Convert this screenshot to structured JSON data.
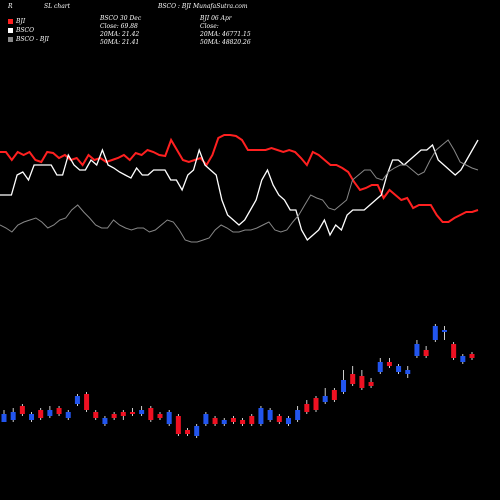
{
  "header": {
    "left_letter": "R",
    "chart_label": "SL chart",
    "center_title": "BSCO : BJI MunafaSutra.com",
    "col1_title": "BSCO 30  Dec",
    "col1_close": "Close: 69.88",
    "col1_ma20": "20MA: 21.42",
    "col1_ma50": "50MA: 21.41",
    "col2_title": "BJI 06  Apr",
    "col2_close": "Close:",
    "col2_ma20": "20MA: 46771.15",
    "col2_ma50": "50MA: 48820.26"
  },
  "legend": {
    "items": [
      {
        "label": "BJI",
        "color": "#ff2020"
      },
      {
        "label": "BSCO",
        "color": "#ffffff"
      },
      {
        "label": "BSCO - BJI",
        "color": "#888888"
      }
    ]
  },
  "chart_data": [
    {
      "type": "line",
      "series": [
        {
          "name": "BJI",
          "color": "#ff2020",
          "values": [
            152,
            152,
            160,
            152,
            155,
            152,
            160,
            162,
            152,
            153,
            158,
            155,
            160,
            158,
            165,
            155,
            160,
            158,
            162,
            160,
            158,
            155,
            160,
            153,
            155,
            150,
            152,
            155,
            156,
            140,
            150,
            160,
            162,
            160,
            158,
            165,
            155,
            138,
            135,
            135,
            136,
            140,
            150,
            150,
            150,
            150,
            148,
            150,
            152,
            150,
            152,
            158,
            165,
            152,
            155,
            160,
            165,
            165,
            168,
            172,
            182,
            190,
            188,
            185,
            185,
            198,
            190,
            195,
            200,
            198,
            208,
            205,
            205,
            205,
            215,
            222,
            222,
            218,
            215,
            212,
            212,
            210
          ]
        },
        {
          "name": "BSCO",
          "color": "#ffffff",
          "values": [
            195,
            195,
            195,
            175,
            172,
            180,
            165,
            165,
            165,
            165,
            175,
            175,
            155,
            165,
            170,
            170,
            160,
            165,
            150,
            165,
            168,
            172,
            175,
            178,
            168,
            175,
            175,
            170,
            170,
            170,
            180,
            180,
            190,
            175,
            170,
            150,
            165,
            170,
            175,
            200,
            215,
            220,
            225,
            220,
            210,
            200,
            180,
            170,
            185,
            195,
            200,
            210,
            210,
            230,
            240,
            235,
            230,
            220,
            235,
            225,
            230,
            215,
            210,
            210,
            210,
            205,
            200,
            195,
            175,
            160,
            160,
            165,
            160,
            155,
            150,
            150,
            145,
            160,
            165,
            170,
            175,
            170,
            160,
            150,
            140
          ]
        },
        {
          "name": "BSCO - BJI",
          "color": "#888888",
          "values": [
            225,
            228,
            232,
            225,
            222,
            220,
            218,
            222,
            228,
            225,
            220,
            218,
            210,
            205,
            212,
            218,
            225,
            228,
            228,
            220,
            225,
            228,
            230,
            228,
            228,
            232,
            230,
            225,
            220,
            222,
            230,
            240,
            242,
            242,
            240,
            238,
            230,
            225,
            228,
            232,
            232,
            230,
            230,
            228,
            225,
            222,
            230,
            232,
            230,
            222,
            215,
            205,
            195,
            198,
            200,
            208,
            210,
            205,
            200,
            180,
            175,
            170,
            170,
            178,
            180,
            172,
            168,
            165,
            165,
            170,
            175,
            172,
            160,
            150,
            145,
            140,
            150,
            162,
            165,
            168,
            170
          ]
        }
      ]
    },
    {
      "type": "candlestick",
      "series": [
        {
          "name": "BSCO",
          "values": [
            {
              "o": 414,
              "c": 422,
              "h": 410,
              "l": 422,
              "d": "up"
            },
            {
              "o": 412,
              "c": 420,
              "h": 408,
              "l": 422,
              "d": "up"
            },
            {
              "o": 406,
              "c": 414,
              "h": 404,
              "l": 416,
              "d": "down"
            },
            {
              "o": 414,
              "c": 420,
              "h": 412,
              "l": 422,
              "d": "up"
            },
            {
              "o": 410,
              "c": 418,
              "h": 408,
              "l": 420,
              "d": "down"
            },
            {
              "o": 410,
              "c": 416,
              "h": 406,
              "l": 418,
              "d": "up"
            },
            {
              "o": 408,
              "c": 414,
              "h": 406,
              "l": 416,
              "d": "down"
            },
            {
              "o": 412,
              "c": 418,
              "h": 410,
              "l": 420,
              "d": "up"
            },
            {
              "o": 396,
              "c": 404,
              "h": 394,
              "l": 406,
              "d": "up"
            },
            {
              "o": 394,
              "c": 410,
              "h": 392,
              "l": 412,
              "d": "down"
            },
            {
              "o": 412,
              "c": 418,
              "h": 410,
              "l": 420,
              "d": "down"
            },
            {
              "o": 418,
              "c": 424,
              "h": 416,
              "l": 426,
              "d": "up"
            },
            {
              "o": 414,
              "c": 418,
              "h": 412,
              "l": 420,
              "d": "down"
            },
            {
              "o": 412,
              "c": 416,
              "h": 410,
              "l": 420,
              "d": "down"
            },
            {
              "o": 412,
              "c": 414,
              "h": 408,
              "l": 416,
              "d": "down"
            },
            {
              "o": 410,
              "c": 414,
              "h": 406,
              "l": 416,
              "d": "up"
            },
            {
              "o": 408,
              "c": 420,
              "h": 406,
              "l": 422,
              "d": "down"
            },
            {
              "o": 414,
              "c": 418,
              "h": 412,
              "l": 420,
              "d": "down"
            },
            {
              "o": 412,
              "c": 424,
              "h": 410,
              "l": 426,
              "d": "up"
            },
            {
              "o": 416,
              "c": 434,
              "h": 414,
              "l": 436,
              "d": "down"
            },
            {
              "o": 430,
              "c": 434,
              "h": 428,
              "l": 436,
              "d": "down"
            },
            {
              "o": 426,
              "c": 436,
              "h": 424,
              "l": 438,
              "d": "up"
            },
            {
              "o": 414,
              "c": 424,
              "h": 412,
              "l": 426,
              "d": "up"
            },
            {
              "o": 418,
              "c": 424,
              "h": 416,
              "l": 426,
              "d": "down"
            },
            {
              "o": 420,
              "c": 424,
              "h": 418,
              "l": 426,
              "d": "up"
            },
            {
              "o": 418,
              "c": 422,
              "h": 416,
              "l": 424,
              "d": "down"
            },
            {
              "o": 420,
              "c": 424,
              "h": 418,
              "l": 426,
              "d": "down"
            },
            {
              "o": 416,
              "c": 424,
              "h": 414,
              "l": 426,
              "d": "down"
            },
            {
              "o": 408,
              "c": 424,
              "h": 406,
              "l": 426,
              "d": "up"
            },
            {
              "o": 410,
              "c": 420,
              "h": 408,
              "l": 422,
              "d": "up"
            },
            {
              "o": 416,
              "c": 422,
              "h": 414,
              "l": 424,
              "d": "down"
            },
            {
              "o": 418,
              "c": 424,
              "h": 416,
              "l": 426,
              "d": "up"
            },
            {
              "o": 410,
              "c": 420,
              "h": 406,
              "l": 422,
              "d": "up"
            },
            {
              "o": 404,
              "c": 412,
              "h": 400,
              "l": 414,
              "d": "down"
            },
            {
              "o": 398,
              "c": 410,
              "h": 396,
              "l": 412,
              "d": "down"
            },
            {
              "o": 396,
              "c": 402,
              "h": 388,
              "l": 404,
              "d": "up"
            },
            {
              "o": 390,
              "c": 400,
              "h": 388,
              "l": 402,
              "d": "down"
            },
            {
              "o": 380,
              "c": 392,
              "h": 370,
              "l": 394,
              "d": "up"
            },
            {
              "o": 374,
              "c": 384,
              "h": 366,
              "l": 386,
              "d": "down"
            },
            {
              "o": 376,
              "c": 388,
              "h": 370,
              "l": 390,
              "d": "down"
            },
            {
              "o": 382,
              "c": 386,
              "h": 378,
              "l": 388,
              "d": "down"
            },
            {
              "o": 362,
              "c": 372,
              "h": 358,
              "l": 374,
              "d": "up"
            },
            {
              "o": 362,
              "c": 366,
              "h": 358,
              "l": 368,
              "d": "down"
            },
            {
              "o": 366,
              "c": 372,
              "h": 364,
              "l": 374,
              "d": "up"
            },
            {
              "o": 370,
              "c": 374,
              "h": 366,
              "l": 378,
              "d": "up"
            },
            {
              "o": 344,
              "c": 356,
              "h": 340,
              "l": 358,
              "d": "up"
            },
            {
              "o": 350,
              "c": 356,
              "h": 346,
              "l": 358,
              "d": "down"
            },
            {
              "o": 326,
              "c": 340,
              "h": 324,
              "l": 342,
              "d": "up"
            },
            {
              "o": 330,
              "c": 332,
              "h": 326,
              "l": 340,
              "d": "up"
            },
            {
              "o": 344,
              "c": 358,
              "h": 342,
              "l": 360,
              "d": "down"
            },
            {
              "o": 356,
              "c": 362,
              "h": 354,
              "l": 364,
              "d": "up"
            },
            {
              "o": 354,
              "c": 358,
              "h": 352,
              "l": 360,
              "d": "down"
            }
          ]
        }
      ]
    }
  ]
}
